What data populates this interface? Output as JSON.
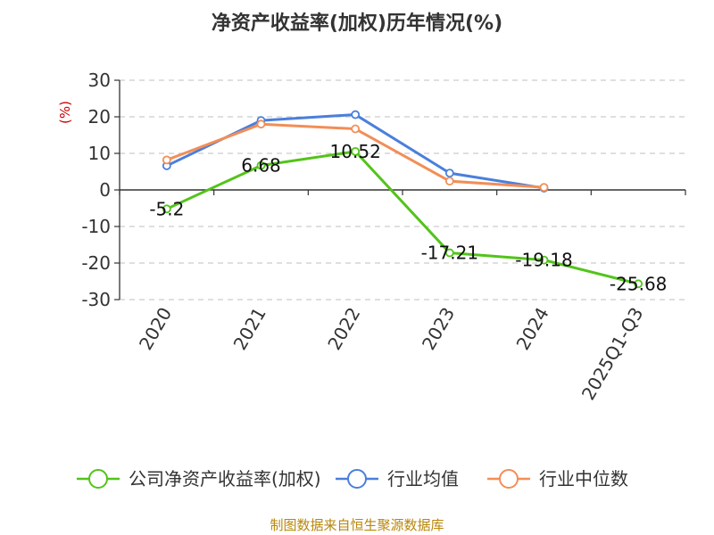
{
  "chart_data": {
    "type": "line",
    "title": "净资产收益率(加权)历年情况(%)",
    "ylabel": "(%)",
    "xlabel": "",
    "categories": [
      "2020",
      "2021",
      "2022",
      "2023",
      "2024",
      "2025Q1-Q3"
    ],
    "ylim": [
      -30,
      30
    ],
    "yticks": [
      30,
      20,
      10,
      0,
      -10,
      -20,
      -30
    ],
    "series": [
      {
        "name": "公司净资产收益率(加权)",
        "color": "#52c41a",
        "values": [
          -5.2,
          6.68,
          10.52,
          -17.21,
          -19.18,
          -25.68
        ],
        "labels": [
          "-5.2",
          "6.68",
          "10.52",
          "-17.21",
          "-19.18",
          "-25.68"
        ]
      },
      {
        "name": "行业均值",
        "color": "#4a7fdc",
        "values": [
          6.6,
          19.0,
          20.6,
          4.6,
          0.5,
          null
        ]
      },
      {
        "name": "行业中位数",
        "color": "#f28e57",
        "values": [
          8.2,
          18.0,
          16.7,
          2.4,
          0.7,
          null
        ]
      }
    ],
    "legend_position": "bottom",
    "grid": true
  },
  "colors": {
    "axis_unit": "#cc0000",
    "source": "#b8860b",
    "grid": "#cccccc"
  },
  "source": "制图数据来自恒生聚源数据库"
}
